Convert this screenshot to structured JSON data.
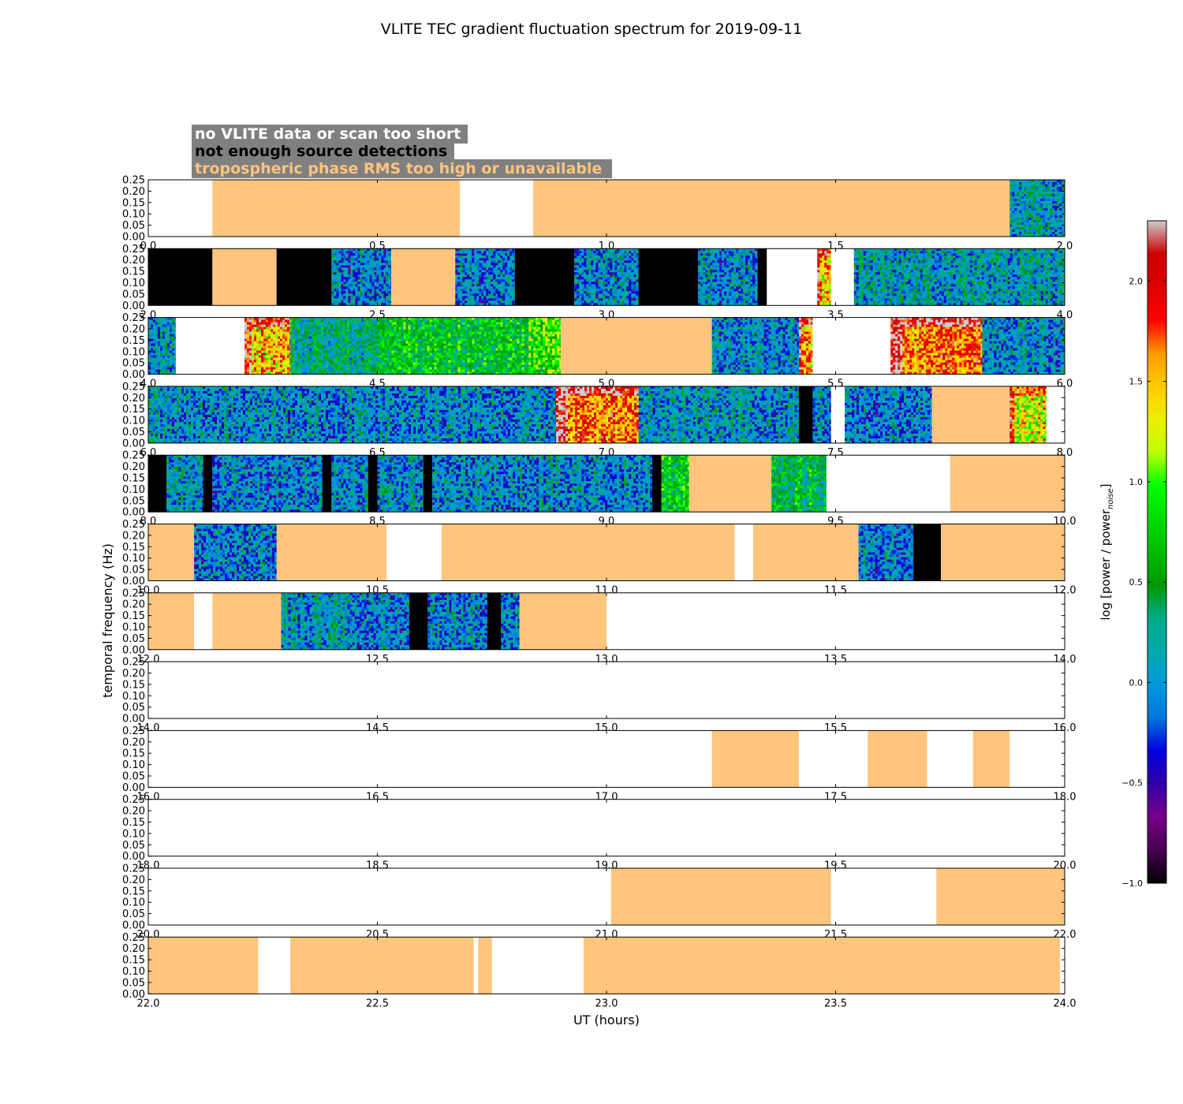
{
  "chart_data": {
    "type": "heatmap",
    "title": "VLITE TEC gradient fluctuation spectrum for 2019-09-11",
    "xlabel": "UT (hours)",
    "ylabel": "temporal frequency (Hz)",
    "ylim": [
      0.0,
      0.25
    ],
    "yticks": [
      "0.00",
      "0.05",
      "0.10",
      "0.15",
      "0.20",
      "0.25"
    ],
    "colorbar": {
      "label": "log [power / power",
      "label_sub": "noise",
      "label_end": "]",
      "ticks": [
        "−1.0",
        "−0.5",
        "0.0",
        "0.5",
        "1.0",
        "1.5",
        "2.0"
      ],
      "tick_values": [
        -1.0,
        -0.5,
        0.0,
        0.5,
        1.0,
        1.5,
        2.0
      ],
      "range": [
        -1.0,
        2.3
      ],
      "colormap": "nipy_spectral"
    },
    "legend": [
      {
        "text": "no VLITE data or scan too short",
        "color": "#ffffff"
      },
      {
        "text": "not enough source detections",
        "color": "#000000"
      },
      {
        "text": "tropospheric phase RMS too high or unavailable",
        "color": "#ffc57d"
      }
    ],
    "legend_background": "#808080",
    "category_colors": {
      "no_data": "#ffffff",
      "few_sources": "#000000",
      "troposphere": "#ffc57d"
    },
    "panels": [
      {
        "range": [
          0.0,
          2.0
        ],
        "xticks": [
          "0.0",
          "0.5",
          "1.0",
          "1.5",
          "2.0"
        ],
        "segments": [
          {
            "start": 0.0,
            "end": 0.14,
            "kind": "none"
          },
          {
            "start": 0.14,
            "end": 0.68,
            "kind": "tropo"
          },
          {
            "start": 0.68,
            "end": 0.84,
            "kind": "none"
          },
          {
            "start": 0.84,
            "end": 1.88,
            "kind": "tropo"
          },
          {
            "start": 1.88,
            "end": 2.0,
            "kind": "spectrum",
            "level": 0.05
          }
        ]
      },
      {
        "range": [
          2.0,
          4.0
        ],
        "xticks": [
          "2.0",
          "2.5",
          "3.0",
          "3.5",
          "4.0"
        ],
        "segments": [
          {
            "start": 2.0,
            "end": 2.14,
            "kind": "black"
          },
          {
            "start": 2.14,
            "end": 2.28,
            "kind": "tropo"
          },
          {
            "start": 2.28,
            "end": 2.4,
            "kind": "black"
          },
          {
            "start": 2.4,
            "end": 2.53,
            "kind": "spectrum",
            "level": -0.05
          },
          {
            "start": 2.53,
            "end": 2.67,
            "kind": "tropo"
          },
          {
            "start": 2.67,
            "end": 2.8,
            "kind": "spectrum",
            "level": -0.05
          },
          {
            "start": 2.8,
            "end": 2.93,
            "kind": "black"
          },
          {
            "start": 2.93,
            "end": 3.07,
            "kind": "spectrum",
            "level": -0.05
          },
          {
            "start": 3.07,
            "end": 3.2,
            "kind": "black"
          },
          {
            "start": 3.2,
            "end": 3.33,
            "kind": "spectrum",
            "level": -0.05
          },
          {
            "start": 3.33,
            "end": 3.35,
            "kind": "black"
          },
          {
            "start": 3.35,
            "end": 3.46,
            "kind": "none"
          },
          {
            "start": 3.46,
            "end": 3.49,
            "kind": "spectrum",
            "level": 1.4
          },
          {
            "start": 3.49,
            "end": 3.54,
            "kind": "none"
          },
          {
            "start": 3.54,
            "end": 4.0,
            "kind": "spectrum",
            "level": 0.1
          }
        ]
      },
      {
        "range": [
          4.0,
          6.0
        ],
        "xticks": [
          "4.0",
          "4.5",
          "5.0",
          "5.5",
          "6.0"
        ],
        "segments": [
          {
            "start": 4.0,
            "end": 4.06,
            "kind": "spectrum",
            "level": 0.05
          },
          {
            "start": 4.06,
            "end": 4.21,
            "kind": "none"
          },
          {
            "start": 4.21,
            "end": 4.31,
            "kind": "spectrum",
            "level": 1.5
          },
          {
            "start": 4.31,
            "end": 4.5,
            "kind": "spectrum",
            "level": 0.3
          },
          {
            "start": 4.5,
            "end": 4.83,
            "kind": "spectrum",
            "level": 0.6
          },
          {
            "start": 4.83,
            "end": 4.9,
            "kind": "spectrum",
            "level": 0.9
          },
          {
            "start": 4.9,
            "end": 5.23,
            "kind": "tropo"
          },
          {
            "start": 5.23,
            "end": 5.42,
            "kind": "spectrum",
            "level": 0.0
          },
          {
            "start": 5.42,
            "end": 5.45,
            "kind": "spectrum",
            "level": 1.5
          },
          {
            "start": 5.45,
            "end": 5.62,
            "kind": "none"
          },
          {
            "start": 5.62,
            "end": 5.82,
            "kind": "spectrum",
            "level": 1.7
          },
          {
            "start": 5.82,
            "end": 6.0,
            "kind": "spectrum",
            "level": 0.0
          }
        ]
      },
      {
        "range": [
          6.0,
          8.0
        ],
        "xticks": [
          "6.0",
          "6.5",
          "7.0",
          "7.5",
          "8.0"
        ],
        "segments": [
          {
            "start": 6.0,
            "end": 6.89,
            "kind": "spectrum",
            "level": 0.0
          },
          {
            "start": 6.89,
            "end": 7.07,
            "kind": "spectrum",
            "level": 1.7
          },
          {
            "start": 7.07,
            "end": 7.42,
            "kind": "spectrum",
            "level": 0.05
          },
          {
            "start": 7.42,
            "end": 7.45,
            "kind": "black"
          },
          {
            "start": 7.45,
            "end": 7.49,
            "kind": "spectrum",
            "level": 0.0
          },
          {
            "start": 7.49,
            "end": 7.52,
            "kind": "none"
          },
          {
            "start": 7.52,
            "end": 7.71,
            "kind": "spectrum",
            "level": -0.05
          },
          {
            "start": 7.71,
            "end": 7.88,
            "kind": "tropo"
          },
          {
            "start": 7.88,
            "end": 7.96,
            "kind": "spectrum",
            "level": 1.3
          },
          {
            "start": 7.96,
            "end": 8.0,
            "kind": "none"
          }
        ]
      },
      {
        "range": [
          8.0,
          10.0
        ],
        "xticks": [
          "8.0",
          "8.5",
          "9.0",
          "9.5",
          "10.0"
        ],
        "segments": [
          {
            "start": 8.0,
            "end": 8.04,
            "kind": "black"
          },
          {
            "start": 8.04,
            "end": 8.12,
            "kind": "spectrum",
            "level": 0.0
          },
          {
            "start": 8.12,
            "end": 8.14,
            "kind": "black"
          },
          {
            "start": 8.14,
            "end": 8.38,
            "kind": "spectrum",
            "level": -0.05
          },
          {
            "start": 8.38,
            "end": 8.4,
            "kind": "black"
          },
          {
            "start": 8.4,
            "end": 8.48,
            "kind": "spectrum",
            "level": 0.0
          },
          {
            "start": 8.48,
            "end": 8.5,
            "kind": "black"
          },
          {
            "start": 8.5,
            "end": 8.6,
            "kind": "spectrum",
            "level": 0.0
          },
          {
            "start": 8.6,
            "end": 8.62,
            "kind": "black"
          },
          {
            "start": 8.62,
            "end": 9.1,
            "kind": "spectrum",
            "level": 0.0
          },
          {
            "start": 9.1,
            "end": 9.12,
            "kind": "black"
          },
          {
            "start": 9.12,
            "end": 9.18,
            "kind": "spectrum",
            "level": 0.7
          },
          {
            "start": 9.18,
            "end": 9.36,
            "kind": "tropo"
          },
          {
            "start": 9.36,
            "end": 9.48,
            "kind": "spectrum",
            "level": 0.5
          },
          {
            "start": 9.48,
            "end": 9.75,
            "kind": "none"
          },
          {
            "start": 9.75,
            "end": 10.0,
            "kind": "tropo"
          }
        ]
      },
      {
        "range": [
          10.0,
          12.0
        ],
        "xticks": [
          "10.0",
          "10.5",
          "11.0",
          "11.5",
          "12.0"
        ],
        "segments": [
          {
            "start": 10.0,
            "end": 10.1,
            "kind": "tropo"
          },
          {
            "start": 10.1,
            "end": 10.28,
            "kind": "spectrum",
            "level": -0.05
          },
          {
            "start": 10.28,
            "end": 10.52,
            "kind": "tropo"
          },
          {
            "start": 10.52,
            "end": 10.64,
            "kind": "none"
          },
          {
            "start": 10.64,
            "end": 11.28,
            "kind": "tropo"
          },
          {
            "start": 11.28,
            "end": 11.32,
            "kind": "none"
          },
          {
            "start": 11.32,
            "end": 11.55,
            "kind": "tropo"
          },
          {
            "start": 11.55,
            "end": 11.67,
            "kind": "spectrum",
            "level": -0.05
          },
          {
            "start": 11.67,
            "end": 11.73,
            "kind": "black"
          },
          {
            "start": 11.73,
            "end": 12.0,
            "kind": "tropo"
          }
        ]
      },
      {
        "range": [
          12.0,
          14.0
        ],
        "xticks": [
          "12.0",
          "12.5",
          "13.0",
          "13.5",
          "14.0"
        ],
        "segments": [
          {
            "start": 12.0,
            "end": 12.1,
            "kind": "tropo"
          },
          {
            "start": 12.1,
            "end": 12.14,
            "kind": "none"
          },
          {
            "start": 12.14,
            "end": 12.29,
            "kind": "tropo"
          },
          {
            "start": 12.29,
            "end": 12.44,
            "kind": "spectrum",
            "level": 0.05
          },
          {
            "start": 12.44,
            "end": 12.57,
            "kind": "spectrum",
            "level": -0.05
          },
          {
            "start": 12.57,
            "end": 12.61,
            "kind": "black"
          },
          {
            "start": 12.61,
            "end": 12.74,
            "kind": "spectrum",
            "level": -0.05
          },
          {
            "start": 12.74,
            "end": 12.77,
            "kind": "black"
          },
          {
            "start": 12.77,
            "end": 12.81,
            "kind": "spectrum",
            "level": 0.0
          },
          {
            "start": 12.81,
            "end": 13.0,
            "kind": "tropo"
          },
          {
            "start": 13.0,
            "end": 14.0,
            "kind": "none"
          }
        ]
      },
      {
        "range": [
          14.0,
          16.0
        ],
        "xticks": [
          "14.0",
          "14.5",
          "15.0",
          "15.5",
          "16.0"
        ],
        "segments": [
          {
            "start": 14.0,
            "end": 16.0,
            "kind": "none"
          }
        ]
      },
      {
        "range": [
          16.0,
          18.0
        ],
        "xticks": [
          "16.0",
          "16.5",
          "17.0",
          "17.5",
          "18.0"
        ],
        "segments": [
          {
            "start": 16.0,
            "end": 17.23,
            "kind": "none"
          },
          {
            "start": 17.23,
            "end": 17.42,
            "kind": "tropo"
          },
          {
            "start": 17.42,
            "end": 17.57,
            "kind": "none"
          },
          {
            "start": 17.57,
            "end": 17.7,
            "kind": "tropo"
          },
          {
            "start": 17.7,
            "end": 17.8,
            "kind": "none"
          },
          {
            "start": 17.8,
            "end": 17.88,
            "kind": "tropo"
          },
          {
            "start": 17.88,
            "end": 18.0,
            "kind": "none"
          }
        ]
      },
      {
        "range": [
          18.0,
          20.0
        ],
        "xticks": [
          "18.0",
          "18.5",
          "19.0",
          "19.5",
          "20.0"
        ],
        "segments": [
          {
            "start": 18.0,
            "end": 20.0,
            "kind": "none"
          }
        ]
      },
      {
        "range": [
          20.0,
          22.0
        ],
        "xticks": [
          "20.0",
          "20.5",
          "21.0",
          "21.5",
          "22.0"
        ],
        "segments": [
          {
            "start": 20.0,
            "end": 21.01,
            "kind": "none"
          },
          {
            "start": 21.01,
            "end": 21.49,
            "kind": "tropo"
          },
          {
            "start": 21.49,
            "end": 21.72,
            "kind": "none"
          },
          {
            "start": 21.72,
            "end": 22.0,
            "kind": "tropo"
          }
        ]
      },
      {
        "range": [
          22.0,
          24.0
        ],
        "xticks": [
          "22.0",
          "22.5",
          "23.0",
          "23.5",
          "24.0"
        ],
        "segments": [
          {
            "start": 22.0,
            "end": 22.24,
            "kind": "tropo"
          },
          {
            "start": 22.24,
            "end": 22.31,
            "kind": "none"
          },
          {
            "start": 22.31,
            "end": 22.71,
            "kind": "tropo"
          },
          {
            "start": 22.71,
            "end": 22.72,
            "kind": "none"
          },
          {
            "start": 22.72,
            "end": 22.75,
            "kind": "tropo"
          },
          {
            "start": 22.75,
            "end": 22.95,
            "kind": "none"
          },
          {
            "start": 22.95,
            "end": 23.99,
            "kind": "tropo"
          },
          {
            "start": 23.99,
            "end": 24.0,
            "kind": "none"
          }
        ]
      }
    ]
  }
}
